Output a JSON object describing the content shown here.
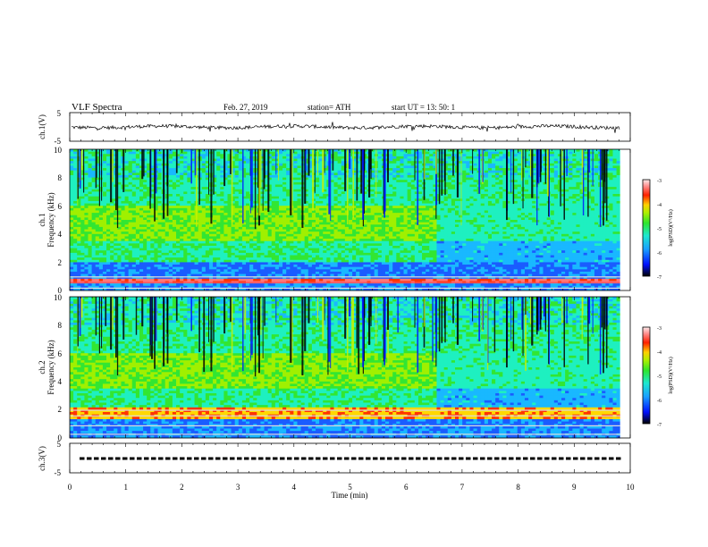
{
  "header": {
    "title": "VLF  Spectra",
    "date": "Feb. 27, 2019",
    "station": "station= ATH",
    "start": "start  UT  =   13: 50: 1"
  },
  "chart_data": [
    {
      "type": "line",
      "ylabel": "ch.1(V)",
      "xlim": [
        0,
        10
      ],
      "ylim": [
        -5,
        5
      ],
      "yticks": [
        "5",
        "-5"
      ],
      "description_values": {
        "baseline": 0.0,
        "noise_amplitude": 0.6
      }
    },
    {
      "type": "heatmap",
      "ylabel_top": "ch.1",
      "ylabel": "Frequency  (kHz)",
      "xlim": [
        0,
        10
      ],
      "ylim": [
        0,
        10
      ],
      "yticks": [
        "0",
        "2",
        "4",
        "6",
        "8",
        "10"
      ],
      "colorbar": {
        "label": "log(PSD)(V²/Hz)",
        "ticks": [
          "-3",
          "-4",
          "-5",
          "-6",
          "-7"
        ],
        "range": [
          -7,
          -3
        ]
      }
    },
    {
      "type": "heatmap",
      "ylabel_top": "ch.2",
      "ylabel": "Frequency  (kHz)",
      "xlim": [
        0,
        10
      ],
      "ylim": [
        0,
        10
      ],
      "yticks": [
        "0",
        "2",
        "4",
        "6",
        "8",
        "10"
      ],
      "colorbar": {
        "label": "log(PSD)(V²/Hz)",
        "ticks": [
          "-3",
          "-4",
          "-5",
          "-6",
          "-7"
        ],
        "range": [
          -7,
          -3
        ]
      }
    },
    {
      "type": "line",
      "ylabel": "ch.3(V)",
      "xlim": [
        0,
        10
      ],
      "ylim": [
        -5,
        5
      ],
      "yticks": [
        "5",
        "-5"
      ],
      "xlabel": "Time  (min)",
      "xticks": [
        "0",
        "1",
        "2",
        "3",
        "4",
        "5",
        "6",
        "7",
        "8",
        "9",
        "10"
      ],
      "description_values": {
        "level": 0.0
      }
    }
  ],
  "colors": {
    "scale": [
      "#1a0a10",
      "#000000",
      "#0015ff",
      "#1a5cff",
      "#19b8ff",
      "#1ef0c0",
      "#32e632",
      "#a0f000",
      "#ffd800",
      "#ff3300",
      "#ff7777",
      "#ffdada"
    ]
  }
}
